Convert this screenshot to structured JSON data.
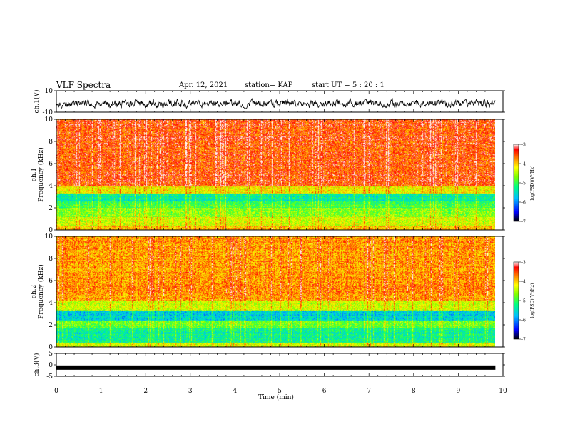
{
  "header": {
    "title": "VLF Spectra",
    "date": "Apr. 12, 2021",
    "station": "station= KAP",
    "start": "start  UT =   5 : 20 : 1"
  },
  "chart_data": [
    {
      "type": "line",
      "name": "ch1-waveform",
      "ylabel": "ch.1(V)",
      "ylim": [
        -10,
        10
      ],
      "yticks": [
        "10",
        "-10"
      ],
      "description_values": "noisy waveform between about -8 and 3 V, centered near -2 V",
      "xlim": [
        0,
        10
      ],
      "x_end": 9.83,
      "baseline": -2,
      "amplitude": 5.5
    },
    {
      "type": "heatmap",
      "name": "ch1-spectrogram",
      "ylabel": "ch.1\nFrequency (kHz)",
      "xlim": [
        0,
        10
      ],
      "ylim": [
        0,
        10
      ],
      "yticks": [
        "0",
        "2",
        "4",
        "6",
        "8",
        "10"
      ],
      "x_end": 9.83,
      "bands_kHz": [
        {
          "from": 0,
          "to": 0.4,
          "level": -4
        },
        {
          "from": 0.4,
          "to": 1.2,
          "level": -4.4
        },
        {
          "from": 1.2,
          "to": 2.0,
          "level": -4.7
        },
        {
          "from": 2.0,
          "to": 2.6,
          "level": -5.0
        },
        {
          "from": 2.6,
          "to": 3.3,
          "level": -5.4
        },
        {
          "from": 3.3,
          "to": 4.0,
          "level": -4.2
        },
        {
          "from": 4.0,
          "to": 10.0,
          "level": -3.5
        }
      ],
      "colorbar": {
        "label": "log(PSD)(V²/Hz)",
        "ticks": [
          "-3",
          "-4",
          "-5",
          "-6",
          "-7"
        ],
        "range": [
          -7,
          -3
        ]
      }
    },
    {
      "type": "heatmap",
      "name": "ch2-spectrogram",
      "ylabel": "ch.2\nFrequency (kHz)",
      "xlim": [
        0,
        10
      ],
      "ylim": [
        0,
        10
      ],
      "yticks": [
        "0",
        "2",
        "4",
        "6",
        "8",
        "10"
      ],
      "x_end": 9.83,
      "bands_kHz": [
        {
          "from": 0,
          "to": 0.4,
          "level": -4.3
        },
        {
          "from": 0.4,
          "to": 1.8,
          "level": -5.3
        },
        {
          "from": 1.8,
          "to": 2.4,
          "level": -4.8
        },
        {
          "from": 2.4,
          "to": 3.3,
          "level": -5.6
        },
        {
          "from": 3.3,
          "to": 4.2,
          "level": -4.4
        },
        {
          "from": 4.2,
          "to": 10.0,
          "level": -3.8
        }
      ],
      "colorbar": {
        "label": "log(PSD)(V²/Hz)",
        "ticks": [
          "-3",
          "-4",
          "-5",
          "-6",
          "-7"
        ],
        "range": [
          -7,
          -3
        ]
      }
    },
    {
      "type": "line",
      "name": "ch3-waveform",
      "ylabel": "ch.3(V)",
      "ylim": [
        -5,
        5
      ],
      "yticks": [
        "5",
        "0",
        "-5"
      ],
      "xlim": [
        0,
        10
      ],
      "x_end": 9.83,
      "level": -1.2,
      "xlabel": "Time (min)",
      "xticks": [
        "0",
        "1",
        "2",
        "3",
        "4",
        "5",
        "6",
        "7",
        "8",
        "9",
        "10"
      ]
    }
  ]
}
